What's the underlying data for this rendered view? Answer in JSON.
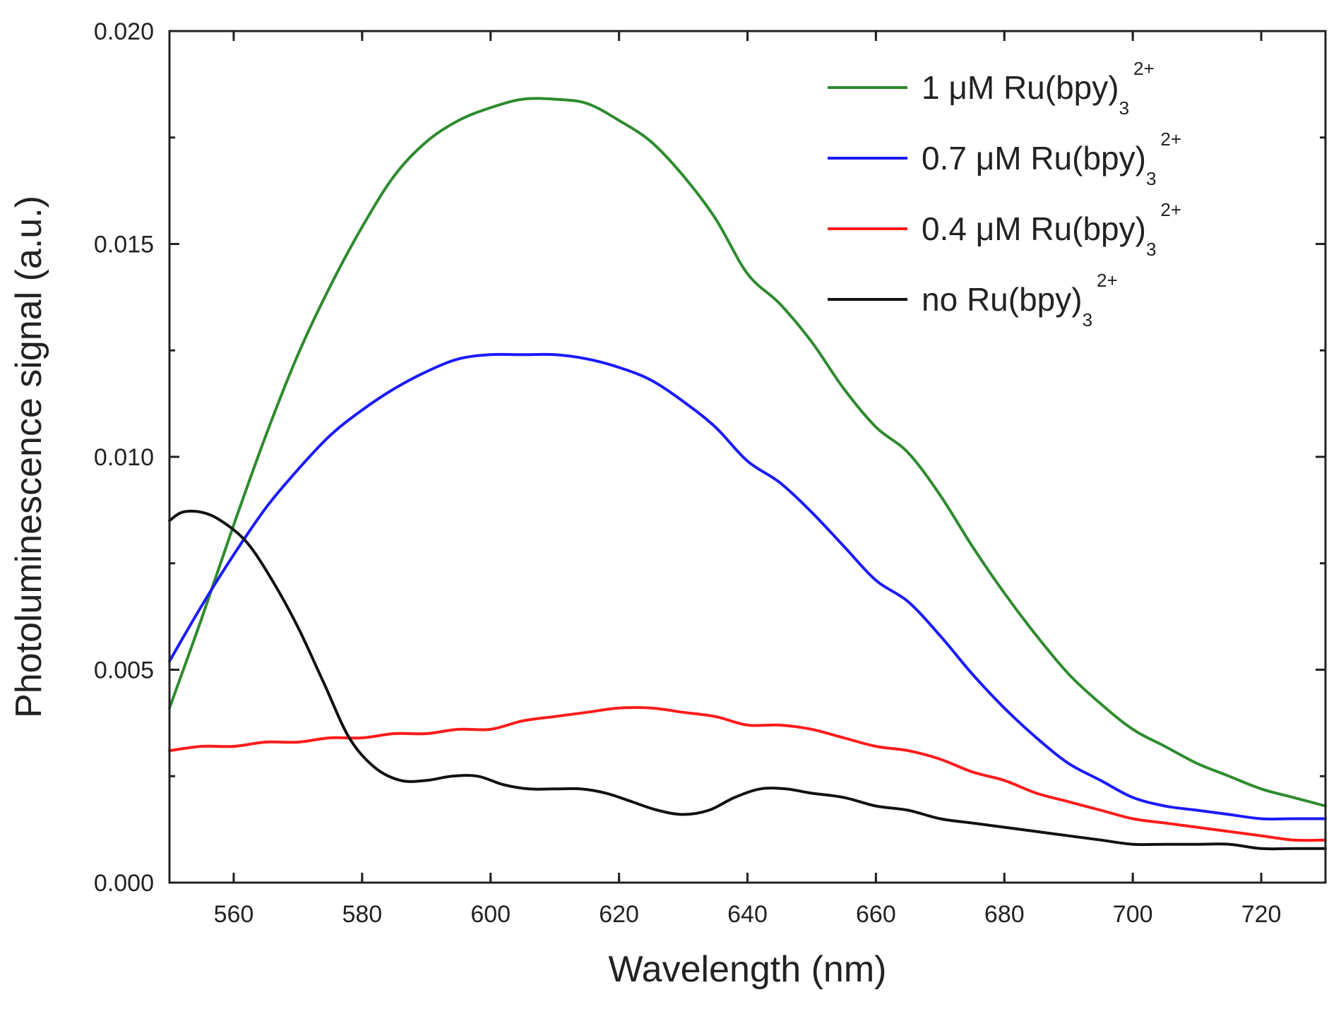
{
  "chart_data": {
    "type": "line",
    "xlabel": "Wavelength (nm)",
    "ylabel": "Photoluminescence signal (a.u.)",
    "xlim": [
      550,
      730
    ],
    "ylim": [
      0.0,
      0.02
    ],
    "xticks": [
      560,
      580,
      600,
      620,
      640,
      660,
      680,
      700,
      720
    ],
    "xtick_labels": [
      "560",
      "580",
      "600",
      "620",
      "640",
      "660",
      "680",
      "700",
      "720"
    ],
    "yticks": [
      0.0,
      0.005,
      0.01,
      0.015,
      0.02
    ],
    "ytick_labels": [
      "0.000",
      "0.005",
      "0.010",
      "0.015",
      "0.020"
    ],
    "legend_position": "top-right",
    "series": [
      {
        "name": "1 μM Ru(bpy)3 2+",
        "label_main": "1 μM Ru(bpy)",
        "label_sub": "3",
        "label_sup": "2+",
        "color": "#2e8b2e",
        "x": [
          550,
          555,
          560,
          565,
          570,
          575,
          580,
          585,
          590,
          595,
          600,
          605,
          610,
          615,
          620,
          625,
          630,
          635,
          640,
          645,
          650,
          655,
          660,
          665,
          670,
          675,
          680,
          685,
          690,
          695,
          700,
          705,
          710,
          715,
          720,
          725,
          730
        ],
        "y": [
          0.0041,
          0.0062,
          0.0084,
          0.0105,
          0.0124,
          0.014,
          0.0154,
          0.0166,
          0.0174,
          0.0179,
          0.0182,
          0.0184,
          0.0184,
          0.0183,
          0.0179,
          0.0174,
          0.0166,
          0.0156,
          0.0143,
          0.0136,
          0.0127,
          0.0116,
          0.0107,
          0.0101,
          0.0091,
          0.0079,
          0.0068,
          0.0058,
          0.0049,
          0.0042,
          0.0036,
          0.0032,
          0.0028,
          0.0025,
          0.0022,
          0.002,
          0.0018
        ]
      },
      {
        "name": "0.7 μM Ru(bpy)3 2+",
        "label_main": "0.7 μM Ru(bpy)",
        "label_sub": "3",
        "label_sup": "2+",
        "color": "#1a1aff",
        "x": [
          550,
          555,
          560,
          565,
          570,
          575,
          580,
          585,
          590,
          595,
          600,
          605,
          610,
          615,
          620,
          625,
          630,
          635,
          640,
          645,
          650,
          655,
          660,
          665,
          670,
          675,
          680,
          685,
          690,
          695,
          700,
          705,
          710,
          715,
          720,
          725,
          730
        ],
        "y": [
          0.0052,
          0.0065,
          0.0077,
          0.0088,
          0.0097,
          0.0105,
          0.0111,
          0.0116,
          0.012,
          0.0123,
          0.0124,
          0.0124,
          0.0124,
          0.0123,
          0.0121,
          0.0118,
          0.0113,
          0.0107,
          0.0099,
          0.0094,
          0.0087,
          0.0079,
          0.0071,
          0.0066,
          0.0058,
          0.0049,
          0.0041,
          0.0034,
          0.0028,
          0.0024,
          0.002,
          0.0018,
          0.0017,
          0.0016,
          0.0015,
          0.0015,
          0.0015
        ]
      },
      {
        "name": "0.4 μM Ru(bpy)3 2+",
        "label_main": "0.4 μM Ru(bpy)",
        "label_sub": "3",
        "label_sup": "2+",
        "color": "#ff1a1a",
        "x": [
          550,
          555,
          560,
          565,
          570,
          575,
          580,
          585,
          590,
          595,
          600,
          605,
          610,
          615,
          620,
          625,
          630,
          635,
          640,
          645,
          650,
          655,
          660,
          665,
          670,
          675,
          680,
          685,
          690,
          695,
          700,
          705,
          710,
          715,
          720,
          725,
          730
        ],
        "y": [
          0.0031,
          0.0032,
          0.0032,
          0.0033,
          0.0033,
          0.0034,
          0.0034,
          0.0035,
          0.0035,
          0.0036,
          0.0036,
          0.0038,
          0.0039,
          0.004,
          0.0041,
          0.0041,
          0.004,
          0.0039,
          0.0037,
          0.0037,
          0.0036,
          0.0034,
          0.0032,
          0.0031,
          0.0029,
          0.0026,
          0.0024,
          0.0021,
          0.0019,
          0.0017,
          0.0015,
          0.0014,
          0.0013,
          0.0012,
          0.0011,
          0.001,
          0.001
        ]
      },
      {
        "name": "no Ru(bpy)3 2+",
        "label_main": "no Ru(bpy)",
        "label_sub": "3",
        "label_sup": "2+",
        "color": "#111111",
        "x": [
          550,
          552,
          555,
          558,
          562,
          566,
          570,
          574,
          578,
          582,
          586,
          590,
          594,
          598,
          602,
          606,
          610,
          614,
          618,
          622,
          626,
          630,
          634,
          638,
          642,
          646,
          650,
          655,
          660,
          665,
          670,
          675,
          680,
          685,
          690,
          695,
          700,
          705,
          710,
          715,
          720,
          725,
          730
        ],
        "y": [
          0.0085,
          0.0087,
          0.0087,
          0.0085,
          0.008,
          0.0071,
          0.006,
          0.0047,
          0.0034,
          0.0027,
          0.0024,
          0.0024,
          0.0025,
          0.0025,
          0.0023,
          0.0022,
          0.0022,
          0.0022,
          0.0021,
          0.0019,
          0.0017,
          0.0016,
          0.0017,
          0.002,
          0.0022,
          0.0022,
          0.0021,
          0.002,
          0.0018,
          0.0017,
          0.0015,
          0.0014,
          0.0013,
          0.0012,
          0.0011,
          0.001,
          0.0009,
          0.0009,
          0.0009,
          0.0009,
          0.0008,
          0.0008,
          0.0008
        ]
      }
    ]
  }
}
